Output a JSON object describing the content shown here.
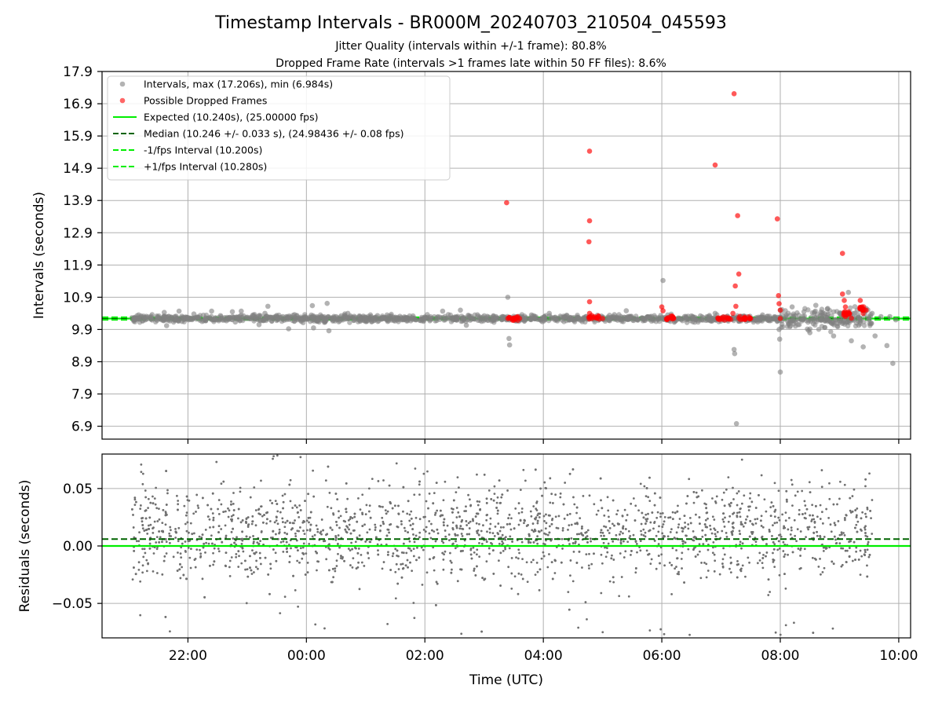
{
  "chart_data": [
    {
      "type": "scatter",
      "title": "Timestamp Intervals - BR000M_20240703_210504_045593",
      "subtitle_lines": [
        "Jitter Quality (intervals within +/-1 frame): 80.8%",
        "Dropped Frame Rate (intervals >1 frames late within 50 FF files): 8.6%"
      ],
      "ylabel": "Intervals (seconds)",
      "ylim": [
        6.5,
        17.9
      ],
      "yticks": [
        "6.9",
        "7.9",
        "8.9",
        "9.9",
        "10.9",
        "11.9",
        "12.9",
        "13.9",
        "14.9",
        "15.9",
        "16.9",
        "17.9"
      ],
      "xlim_hours": [
        20.55,
        34.2
      ],
      "grid": true,
      "legend_placement": "top-left",
      "legend": [
        {
          "label": "Intervals, max (17.206s), min (6.984s)",
          "kind": "dot",
          "color": "#808080"
        },
        {
          "label": "Possible Dropped Frames",
          "kind": "dot",
          "color": "#ff0000"
        },
        {
          "label": "Expected (10.240s), (25.00000 fps)",
          "kind": "solid",
          "color": "#00ee00"
        },
        {
          "label": "Median (10.246 +/- 0.033 s), (24.98436 +/- 0.08 fps)",
          "kind": "dashed",
          "color": "#006400"
        },
        {
          "label": "-1/fps Interval (10.200s)",
          "kind": "dashed",
          "color": "#00ee00"
        },
        {
          "label": "+1/fps Interval (10.280s)",
          "kind": "dashed",
          "color": "#00ee00"
        }
      ],
      "reference_lines": {
        "expected": 10.24,
        "median": 10.246,
        "minus_one_fps": 10.2,
        "plus_one_fps": 10.28
      },
      "series": [
        {
          "name": "Intervals",
          "color": "#808080",
          "points": [
            [
              21.1,
              10.25
            ],
            [
              21.3,
              10.22
            ],
            [
              21.5,
              10.28
            ],
            [
              21.6,
              10.43
            ],
            [
              21.64,
              10.02
            ],
            [
              21.7,
              10.2
            ],
            [
              21.8,
              10.31
            ],
            [
              21.85,
              10.47
            ],
            [
              21.9,
              10.15
            ],
            [
              22.0,
              10.27
            ],
            [
              22.1,
              10.38
            ],
            [
              22.2,
              10.19
            ],
            [
              22.3,
              10.26
            ],
            [
              22.4,
              10.47
            ],
            [
              22.46,
              10.2
            ],
            [
              22.55,
              10.33
            ],
            [
              22.65,
              10.17
            ],
            [
              22.75,
              10.45
            ],
            [
              22.8,
              10.13
            ],
            [
              22.9,
              10.47
            ],
            [
              23.0,
              10.24
            ],
            [
              23.1,
              10.35
            ],
            [
              23.2,
              10.05
            ],
            [
              23.3,
              10.4
            ],
            [
              23.35,
              10.62
            ],
            [
              23.4,
              10.28
            ],
            [
              23.5,
              10.18
            ],
            [
              23.6,
              10.3
            ],
            [
              23.7,
              9.92
            ],
            [
              23.8,
              10.36
            ],
            [
              23.9,
              10.21
            ],
            [
              24.0,
              10.27
            ],
            [
              24.1,
              10.64
            ],
            [
              24.12,
              9.95
            ],
            [
              24.2,
              10.25
            ],
            [
              24.35,
              10.71
            ],
            [
              24.38,
              9.86
            ],
            [
              24.5,
              10.3
            ],
            [
              24.6,
              10.22
            ],
            [
              24.7,
              10.4
            ],
            [
              24.8,
              10.18
            ],
            [
              24.9,
              10.3
            ],
            [
              25.0,
              10.26
            ],
            [
              25.1,
              10.14
            ],
            [
              25.2,
              10.33
            ],
            [
              25.3,
              10.24
            ],
            [
              25.5,
              10.28
            ],
            [
              25.6,
              10.2
            ],
            [
              25.8,
              10.32
            ],
            [
              26.0,
              10.25
            ],
            [
              26.2,
              10.18
            ],
            [
              26.3,
              10.47
            ],
            [
              26.4,
              10.26
            ],
            [
              26.6,
              10.5
            ],
            [
              26.7,
              10.03
            ],
            [
              26.9,
              10.31
            ],
            [
              27.0,
              10.24
            ],
            [
              27.2,
              10.3
            ],
            [
              27.4,
              10.9
            ],
            [
              27.42,
              9.62
            ],
            [
              27.43,
              9.42
            ],
            [
              27.6,
              10.24
            ],
            [
              27.8,
              10.35
            ],
            [
              28.0,
              10.25
            ],
            [
              28.1,
              10.4
            ],
            [
              28.2,
              10.19
            ],
            [
              28.4,
              10.33
            ],
            [
              28.6,
              10.22
            ],
            [
              28.8,
              10.31
            ],
            [
              29.0,
              10.27
            ],
            [
              29.2,
              10.36
            ],
            [
              29.4,
              10.48
            ],
            [
              29.6,
              10.21
            ],
            [
              29.8,
              10.3
            ],
            [
              30.0,
              10.27
            ],
            [
              30.02,
              11.42
            ],
            [
              30.1,
              10.35
            ],
            [
              30.3,
              10.23
            ],
            [
              30.5,
              10.32
            ],
            [
              30.7,
              10.26
            ],
            [
              30.9,
              10.4
            ],
            [
              31.1,
              10.22
            ],
            [
              31.22,
              9.28
            ],
            [
              31.23,
              9.15
            ],
            [
              31.26,
              6.98
            ],
            [
              31.35,
              10.3
            ],
            [
              31.5,
              10.25
            ],
            [
              31.7,
              10.35
            ],
            [
              31.9,
              10.22
            ],
            [
              32.0,
              10.5
            ],
            [
              31.98,
              9.9
            ],
            [
              31.99,
              9.6
            ],
            [
              32.0,
              8.58
            ],
            [
              32.1,
              10.35
            ],
            [
              32.2,
              10.6
            ],
            [
              32.3,
              10.05
            ],
            [
              32.4,
              10.45
            ],
            [
              32.5,
              9.8
            ],
            [
              32.6,
              10.65
            ],
            [
              32.7,
              10.2
            ],
            [
              32.8,
              10.55
            ],
            [
              32.9,
              9.7
            ],
            [
              33.0,
              10.4
            ],
            [
              33.1,
              10.12
            ],
            [
              33.15,
              11.05
            ],
            [
              33.2,
              9.55
            ],
            [
              33.3,
              10.5
            ],
            [
              33.35,
              10.2
            ],
            [
              33.4,
              9.36
            ],
            [
              33.45,
              10.55
            ],
            [
              33.5,
              10.2
            ],
            [
              33.55,
              10.4
            ],
            [
              33.6,
              9.7
            ],
            [
              33.7,
              10.3
            ],
            [
              33.8,
              9.4
            ],
            [
              33.85,
              10.3
            ],
            [
              33.9,
              8.85
            ],
            [
              33.95,
              10.2
            ]
          ]
        },
        {
          "name": "Possible Dropped Frames",
          "color": "#ff0000",
          "points": [
            [
              27.38,
              13.83
            ],
            [
              27.4,
              10.24
            ],
            [
              27.5,
              10.26
            ],
            [
              27.6,
              10.24
            ],
            [
              28.78,
              15.43
            ],
            [
              28.78,
              13.27
            ],
            [
              28.77,
              12.62
            ],
            [
              28.78,
              10.76
            ],
            [
              28.78,
              10.4
            ],
            [
              28.82,
              10.24
            ],
            [
              28.9,
              10.26
            ],
            [
              29.0,
              10.24
            ],
            [
              30.0,
              10.6
            ],
            [
              30.02,
              10.48
            ],
            [
              30.1,
              10.26
            ],
            [
              30.2,
              10.24
            ],
            [
              30.9,
              15.0
            ],
            [
              30.95,
              10.26
            ],
            [
              31.1,
              10.25
            ],
            [
              31.2,
              10.4
            ],
            [
              31.22,
              17.21
            ],
            [
              31.24,
              11.25
            ],
            [
              31.28,
              13.43
            ],
            [
              31.3,
              11.62
            ],
            [
              31.25,
              10.62
            ],
            [
              31.3,
              10.25
            ],
            [
              31.4,
              10.26
            ],
            [
              31.5,
              10.24
            ],
            [
              31.95,
              13.33
            ],
            [
              31.97,
              10.95
            ],
            [
              31.98,
              10.7
            ],
            [
              32.0,
              10.5
            ],
            [
              32.0,
              10.24
            ],
            [
              33.05,
              12.26
            ],
            [
              33.05,
              11.0
            ],
            [
              33.08,
              10.8
            ],
            [
              33.1,
              10.6
            ],
            [
              33.1,
              10.3
            ],
            [
              33.15,
              10.45
            ],
            [
              33.2,
              10.25
            ],
            [
              33.35,
              10.8
            ],
            [
              33.38,
              10.6
            ],
            [
              33.4,
              10.4
            ],
            [
              33.45,
              10.5
            ]
          ]
        }
      ]
    },
    {
      "type": "scatter",
      "ylabel": "Residuals (seconds)",
      "xlabel": "Time (UTC)",
      "ylim": [
        -0.08,
        0.08
      ],
      "yticks": [
        "−0.05",
        "0.00",
        "0.05"
      ],
      "xticks": [
        "22:00",
        "00:00",
        "02:00",
        "04:00",
        "06:00",
        "08:00",
        "10:00"
      ],
      "xlim_hours": [
        20.55,
        34.2
      ],
      "grid": true,
      "reference_lines": {
        "expected": 0.0,
        "median": 0.006
      },
      "series": [
        {
          "name": "Residuals",
          "color": "#707070",
          "time_range_hours": [
            21.05,
            33.55
          ],
          "count": 2300,
          "typical_spread_seconds": 0.02,
          "max_abs_seconds": 0.08
        }
      ]
    }
  ]
}
